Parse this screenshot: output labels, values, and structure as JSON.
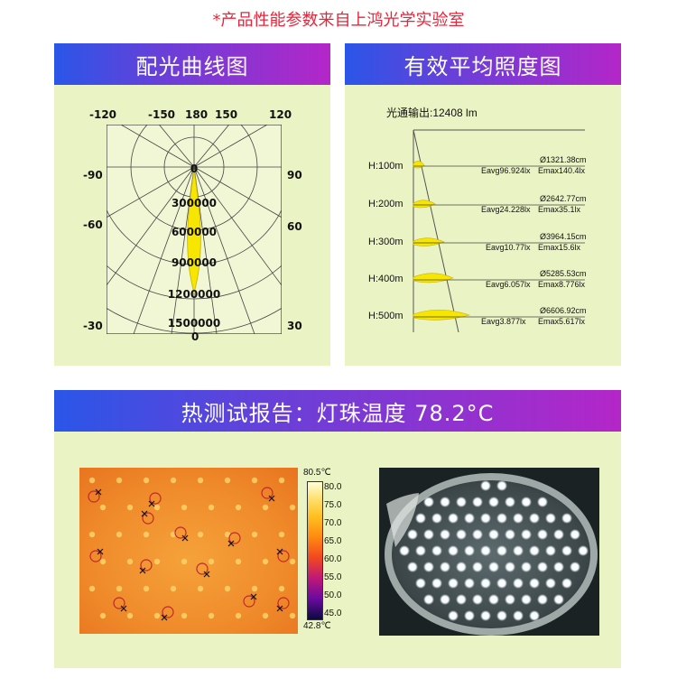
{
  "notice": "*产品性能参数来自上鸿光学实验室",
  "sections": {
    "polar_title": "配光曲线图",
    "illum_title": "有效平均照度图",
    "thermal_title": "热测试报告：灯珠温度 78.2°C"
  },
  "polar": {
    "top_angles": [
      "-120",
      "-150",
      "180",
      "150",
      "120"
    ],
    "left_angles": [
      "-90",
      "-60",
      "-30"
    ],
    "right_angles": [
      "90",
      "60",
      "30"
    ],
    "rings": [
      "0",
      "300000",
      "600000",
      "900000",
      "1200000",
      "1500000"
    ],
    "bottom_label": "0",
    "beam_color": "#f6e600"
  },
  "illum": {
    "flux": "光通输出:12408 lm",
    "rows": [
      {
        "h": "H:100m",
        "d": "Ø1321.38cm",
        "eavg": "Eavg96.924lx",
        "emax": "Emax140.4lx"
      },
      {
        "h": "H:200m",
        "d": "Ø2642.77cm",
        "eavg": "Eavg24.228lx",
        "emax": "Emax35.1lx"
      },
      {
        "h": "H:300m",
        "d": "Ø3964.15cm",
        "eavg": "Eavg10.77lx",
        "emax": "Emax15.6lx"
      },
      {
        "h": "H:400m",
        "d": "Ø5285.53cm",
        "eavg": "Eavg6.057lx",
        "emax": "Emax8.776lx"
      },
      {
        "h": "H:500m",
        "d": "Ø6606.92cm",
        "eavg": "Eavg3.877lx",
        "emax": "Emax5.617lx"
      }
    ]
  },
  "thermal": {
    "max": "80.5℃",
    "min": "42.8℃",
    "scale": [
      "80.0",
      "75.0",
      "70.0",
      "65.0",
      "60.0",
      "55.0",
      "50.0",
      "45.0"
    ],
    "markers": [
      "B9",
      "B10",
      "B7",
      "B1",
      "B8",
      "B6",
      "B4",
      "B5",
      "B3",
      "B11",
      "B12",
      "B2"
    ]
  },
  "colors": {
    "header_start": "#2a56e8",
    "header_end": "#b426c8",
    "panel": "#eaf3c4",
    "notice": "#e8243a"
  }
}
